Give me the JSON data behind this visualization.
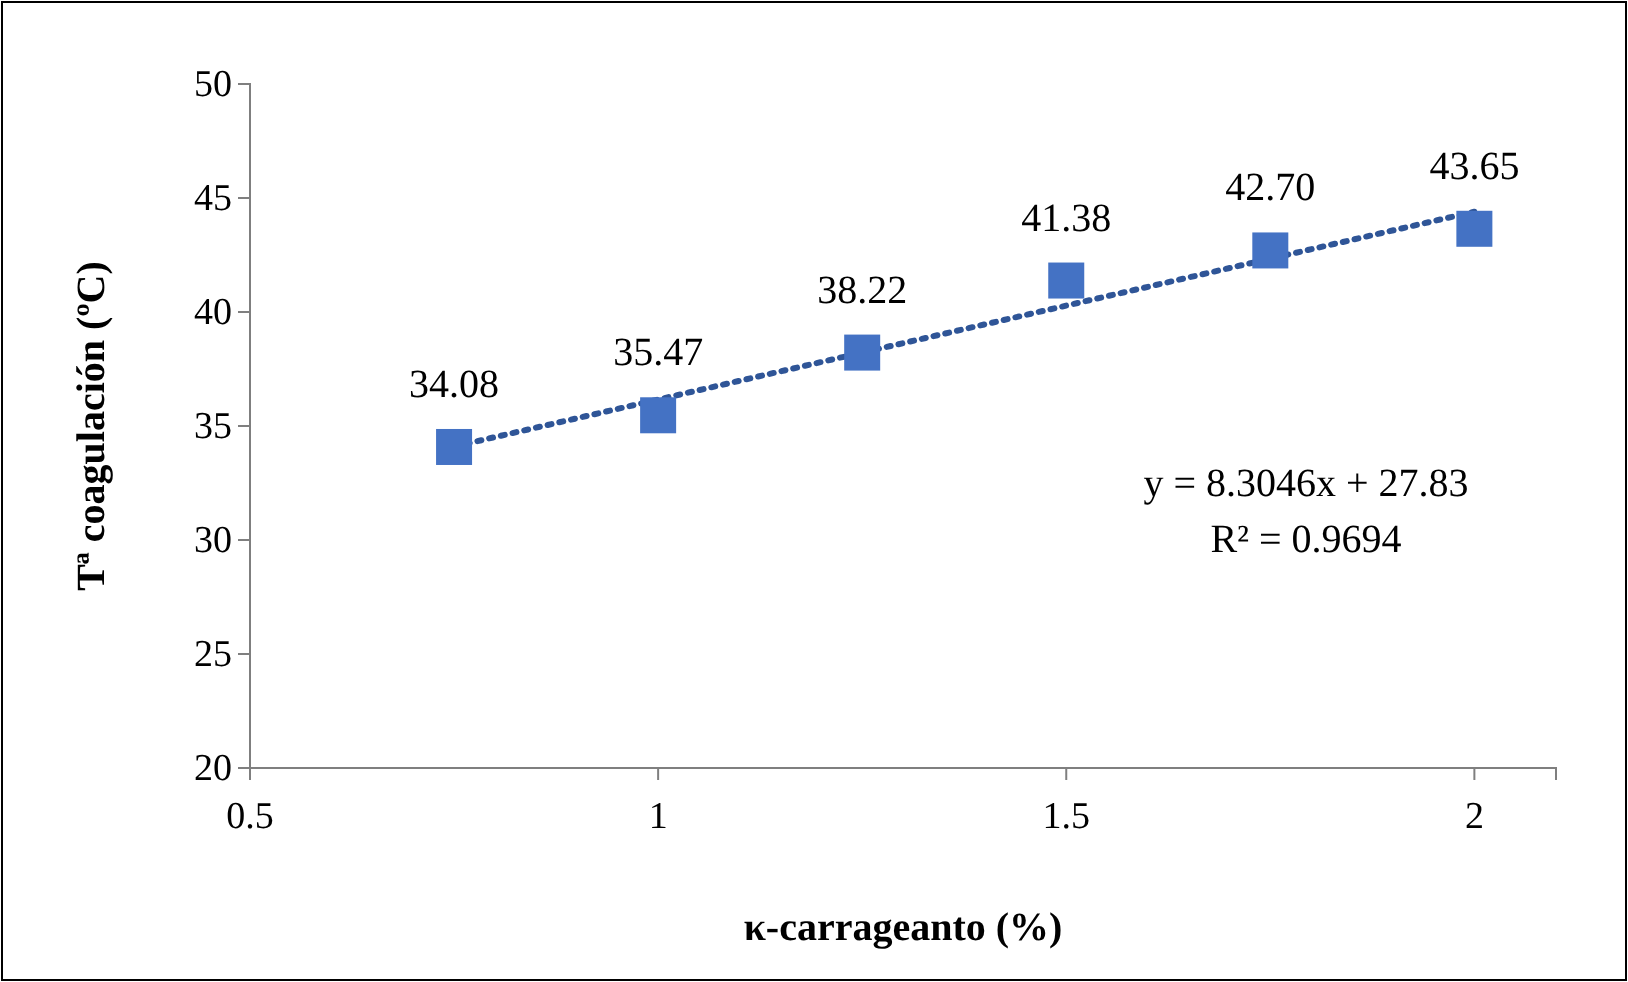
{
  "chart_data": {
    "type": "scatter",
    "xlabel": "κ-carrageanto (%)",
    "ylabel": "Tª coagulación (ºC)",
    "xlim": [
      0.5,
      2.1
    ],
    "ylim": [
      20,
      50
    ],
    "xticks": [
      0.5,
      1,
      1.5,
      2
    ],
    "yticks": [
      20,
      25,
      30,
      35,
      40,
      45,
      50
    ],
    "grid": false,
    "marker": "square",
    "series": [
      {
        "color": "#4472c4",
        "x": [
          0.75,
          1,
          1.25,
          1.5,
          1.75,
          2
        ],
        "values": [
          34.08,
          35.47,
          38.22,
          41.38,
          42.7,
          43.65
        ],
        "value_labels": [
          "34.08",
          "35.47",
          "38.22",
          "41.38",
          "42.70",
          "43.65"
        ]
      },
      {
        "type": "line",
        "marker": "none",
        "color": "#2f5597",
        "line_style": "dotted",
        "x": [
          0.75,
          2
        ],
        "values": [
          34.1,
          44.4
        ]
      }
    ],
    "annotations": [
      "y = 8.3046x + 27.83",
      "R² = 0.9694"
    ]
  }
}
